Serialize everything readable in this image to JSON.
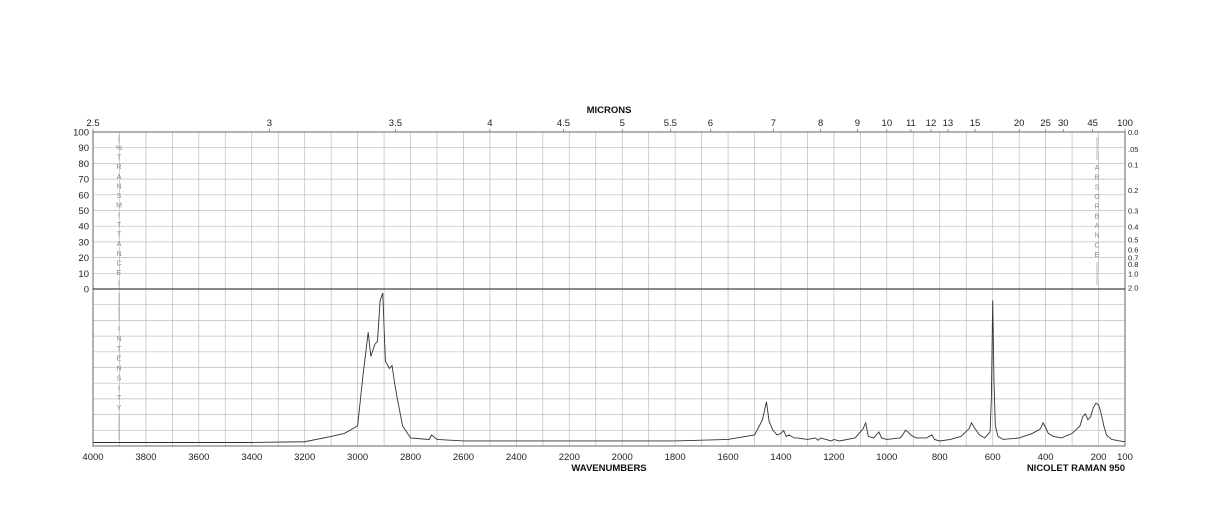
{
  "chart_data": {
    "type": "line",
    "top_axis_title": "MICRONS",
    "bottom_axis_title": "WAVENUMBERS",
    "instrument": "NICOLET RAMAN 950",
    "xlim": [
      4000,
      100
    ],
    "x_ticks": [
      "4000",
      "3800",
      "3600",
      "3400",
      "3200",
      "3000",
      "2800",
      "2600",
      "2400",
      "2200",
      "2000",
      "1800",
      "1600",
      "1400",
      "1200",
      "1000",
      "800",
      "600",
      "400",
      "200",
      "100"
    ],
    "micron_ticks": [
      "2.5",
      "3",
      "3.5",
      "4",
      "4.5",
      "5",
      "5.5",
      "6",
      "7",
      "8",
      "9",
      "10",
      "11",
      "12",
      "13",
      "15",
      "20",
      "25",
      "30",
      "45",
      "100"
    ],
    "left_ticks": [
      "100",
      "90",
      "80",
      "70",
      "60",
      "50",
      "40",
      "30",
      "20",
      "10",
      "0"
    ],
    "left_label": "%TRANSMITTANCE",
    "right_label": "ABSORBANCE",
    "right_ticks": [
      "0.0",
      ".05",
      "0.1",
      "0.2",
      "0.3",
      "0.4",
      "0.5",
      "0.6",
      "0.7",
      "0.8",
      "1.0",
      "2.0"
    ],
    "intensity_label": "INTENSITY",
    "series": [
      {
        "x": [
          4000,
          3800,
          3600,
          3400,
          3200,
          3100,
          3050,
          3000,
          2980,
          2960,
          2950,
          2935,
          2925,
          2915,
          2905,
          2895,
          2880,
          2870,
          2860,
          2850,
          2830,
          2800,
          2730,
          2720,
          2700,
          2600,
          2400,
          2200,
          2000,
          1800,
          1600,
          1500,
          1470,
          1455,
          1445,
          1430,
          1415,
          1400,
          1390,
          1380,
          1370,
          1350,
          1340,
          1300,
          1270,
          1260,
          1250,
          1210,
          1200,
          1180,
          1120,
          1090,
          1080,
          1070,
          1050,
          1040,
          1030,
          1020,
          1000,
          950,
          940,
          930,
          920,
          910,
          890,
          850,
          840,
          830,
          820,
          800,
          760,
          720,
          690,
          680,
          670,
          650,
          630,
          610,
          605,
          600,
          595,
          590,
          580,
          560,
          500,
          450,
          420,
          410,
          400,
          390,
          370,
          340,
          300,
          270,
          260,
          250,
          240,
          230,
          220,
          210,
          200,
          190,
          180,
          170,
          150,
          120,
          100
        ],
        "y": [
          1,
          1,
          1,
          1,
          1.5,
          5,
          7,
          12,
          45,
          74,
          58,
          66,
          68,
          95,
          100,
          55,
          50,
          52,
          40,
          30,
          12,
          4,
          3,
          6,
          3,
          2,
          2,
          2,
          2,
          2,
          3,
          6,
          16,
          28,
          15,
          9,
          6,
          7,
          9,
          5,
          6,
          4,
          4,
          3,
          4,
          2.5,
          4,
          2,
          3,
          2,
          4,
          10,
          14,
          5,
          4,
          6,
          8,
          4,
          3,
          4,
          6,
          9,
          8,
          6,
          4,
          4,
          5,
          6,
          3,
          2,
          3,
          5,
          10,
          14,
          11,
          6,
          4,
          8,
          30,
          95,
          40,
          12,
          5,
          3,
          4,
          7,
          10,
          14,
          11,
          7,
          5,
          4,
          7,
          12,
          18,
          20,
          16,
          18,
          24,
          27,
          26,
          20,
          12,
          6,
          3,
          2,
          1.5
        ]
      }
    ]
  }
}
